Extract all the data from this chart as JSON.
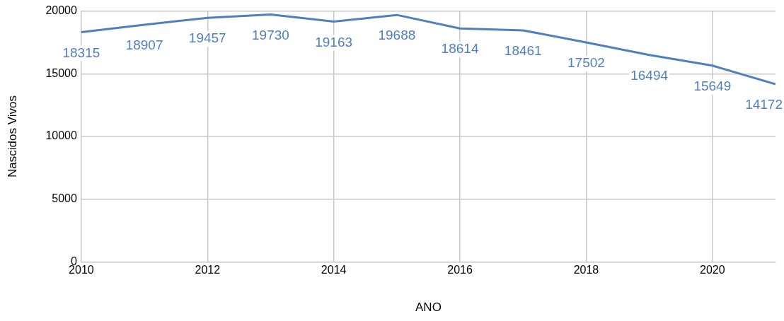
{
  "chart_data": {
    "type": "line",
    "xlabel": "ANO",
    "ylabel": "Nascidos Vivos",
    "x": [
      2010,
      2011,
      2012,
      2013,
      2014,
      2015,
      2016,
      2017,
      2018,
      2019,
      2020,
      2021
    ],
    "series": [
      {
        "color": "#4f7fbf",
        "values": [
          18315,
          18907,
          19457,
          19730,
          19163,
          19688,
          18614,
          18461,
          17502,
          16494,
          15649,
          14172
        ]
      }
    ],
    "xlim": [
      2010,
      2021
    ],
    "xticks": [
      2010,
      2012,
      2014,
      2016,
      2018,
      2020
    ],
    "ylim": [
      0,
      20000
    ],
    "yticks": [
      0,
      5000,
      10000,
      15000,
      20000
    ],
    "grid": true,
    "legend": false,
    "marker": "none",
    "line_style": "solid",
    "data_labels": true
  }
}
